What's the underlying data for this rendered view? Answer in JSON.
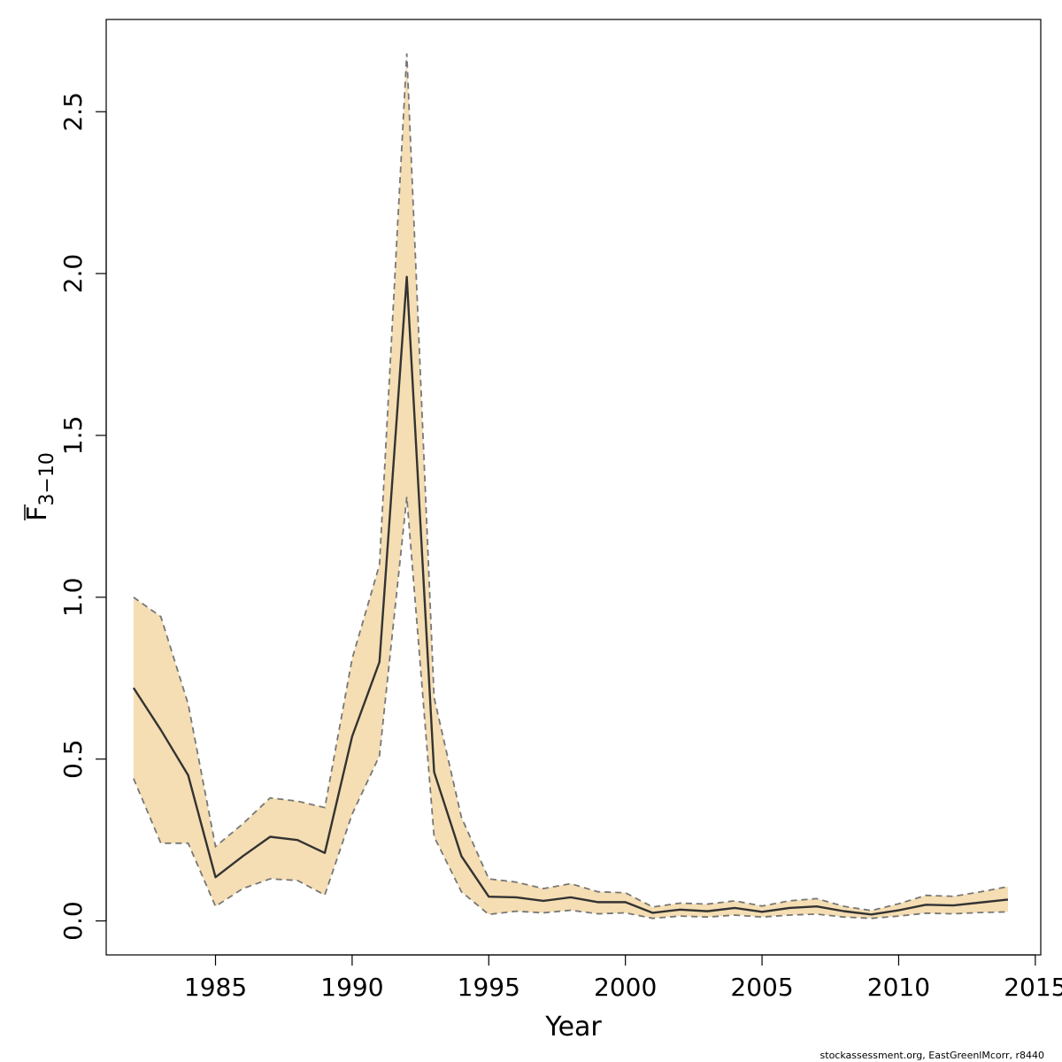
{
  "chart_data": {
    "type": "line",
    "xlabel": "Year",
    "ylabel_main": "F",
    "ylabel_sub": "3−10",
    "credit": "stockassessment.org, EastGreenlMcorr, r8440",
    "xlim": [
      1981.0,
      2015.2
    ],
    "ylim": [
      -0.105,
      2.785
    ],
    "x_ticks": [
      1985,
      1990,
      1995,
      2000,
      2005,
      2010,
      2015
    ],
    "y_ticks": [
      0.0,
      0.5,
      1.0,
      1.5,
      2.0,
      2.5
    ],
    "y_tick_labels": [
      "0.0",
      "0.5",
      "1.0",
      "1.5",
      "2.0",
      "2.5"
    ],
    "band_color": "#F5DEB3",
    "line_color": "#333333",
    "bound_color": "#777777",
    "grid": false,
    "x": [
      1982,
      1983,
      1984,
      1985,
      1986,
      1987,
      1988,
      1989,
      1990,
      1991,
      1992,
      1993,
      1994,
      1995,
      1996,
      1997,
      1998,
      1999,
      2000,
      2001,
      2002,
      2003,
      2004,
      2005,
      2006,
      2007,
      2008,
      2009,
      2010,
      2011,
      2012,
      2013,
      2014
    ],
    "series": [
      {
        "role": "estimate",
        "values": [
          0.72,
          0.59,
          0.45,
          0.135,
          0.2,
          0.26,
          0.25,
          0.21,
          0.57,
          0.8,
          1.99,
          0.46,
          0.2,
          0.075,
          0.073,
          0.062,
          0.073,
          0.058,
          0.058,
          0.025,
          0.035,
          0.03,
          0.04,
          0.028,
          0.04,
          0.045,
          0.03,
          0.02,
          0.033,
          0.05,
          0.048,
          0.057,
          0.066
        ]
      },
      {
        "role": "upper",
        "values": [
          1.0,
          0.94,
          0.67,
          0.23,
          0.3,
          0.38,
          0.37,
          0.35,
          0.81,
          1.1,
          2.68,
          0.69,
          0.32,
          0.13,
          0.12,
          0.1,
          0.115,
          0.09,
          0.087,
          0.043,
          0.055,
          0.052,
          0.062,
          0.046,
          0.062,
          0.069,
          0.045,
          0.032,
          0.053,
          0.079,
          0.076,
          0.09,
          0.106
        ]
      },
      {
        "role": "lower",
        "values": [
          0.44,
          0.24,
          0.24,
          0.045,
          0.1,
          0.13,
          0.125,
          0.08,
          0.33,
          0.51,
          1.31,
          0.26,
          0.09,
          0.02,
          0.03,
          0.025,
          0.033,
          0.022,
          0.025,
          0.008,
          0.015,
          0.012,
          0.018,
          0.012,
          0.018,
          0.021,
          0.012,
          0.008,
          0.015,
          0.024,
          0.022,
          0.026,
          0.028
        ]
      }
    ]
  }
}
